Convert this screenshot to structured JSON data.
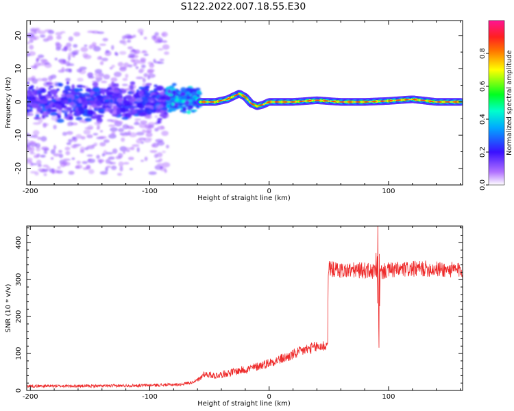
{
  "figure": {
    "title": "S122.2022.007.18.55.E30"
  },
  "chart_data": [
    {
      "type": "heatmap",
      "xlabel": "Height of straight line (km)",
      "ylabel": "Frequency (Hz)",
      "xlim": [
        -203,
        162
      ],
      "ylim": [
        -25,
        24.5
      ],
      "x_ticks": [
        -200,
        -100,
        0,
        100
      ],
      "y_ticks": [
        -20,
        -10,
        0,
        10,
        20
      ],
      "colorbar": {
        "label": "Normalized spectral amplitude",
        "range": [
          0.0,
          1.0
        ],
        "ticks": [
          "0.0",
          "0.2",
          "0.4",
          "0.6",
          "0.8"
        ],
        "tick_values": [
          0.0,
          0.2,
          0.4,
          0.6,
          0.8
        ],
        "colors": [
          "#ffffff",
          "#9b30ff",
          "#3a10ff",
          "#00ccff",
          "#00ff40",
          "#ffff00",
          "#ff3030",
          "#ff1493"
        ]
      },
      "description_regions": [
        {
          "x_range": [
            -203,
            -85
          ],
          "freq_spread": 22,
          "max_amplitude": 0.35
        },
        {
          "x_range": [
            -85,
            -58
          ],
          "freq_spread": 10,
          "max_amplitude": 0.45
        },
        {
          "x_range": [
            -58,
            162
          ],
          "freq_spread": 1.5,
          "max_amplitude": 0.85
        }
      ],
      "ridge_line": {
        "x": [
          -58,
          -45,
          -35,
          -25,
          -20,
          -15,
          -10,
          -5,
          0,
          20,
          40,
          60,
          80,
          100,
          120,
          140,
          162
        ],
        "y": [
          0,
          0,
          0.8,
          2.5,
          1.5,
          -0.5,
          -1.3,
          -0.8,
          0,
          0,
          0.5,
          0,
          0,
          0.3,
          0.8,
          0,
          0
        ]
      }
    },
    {
      "type": "line",
      "xlabel": "Height of straight line (km)",
      "ylabel": "SNR (10 * v/v)",
      "xlim": [
        -203,
        162
      ],
      "ylim": [
        0,
        445
      ],
      "x_ticks": [
        -200,
        -100,
        0,
        100
      ],
      "y_ticks": [
        0,
        100,
        200,
        300,
        400
      ],
      "color": "#ee2a2a",
      "trend_x": [
        -203,
        -140,
        -100,
        -75,
        -65,
        -58,
        -55,
        -45,
        -30,
        -15,
        0,
        15,
        30,
        40,
        49,
        49.5,
        60,
        80,
        90,
        91,
        92,
        93,
        100,
        130,
        162
      ],
      "trend_y": [
        12,
        12,
        14,
        16,
        22,
        30,
        45,
        40,
        50,
        60,
        75,
        90,
        110,
        118,
        122,
        330,
        325,
        325,
        320,
        430,
        100,
        320,
        325,
        330,
        325
      ]
    }
  ]
}
